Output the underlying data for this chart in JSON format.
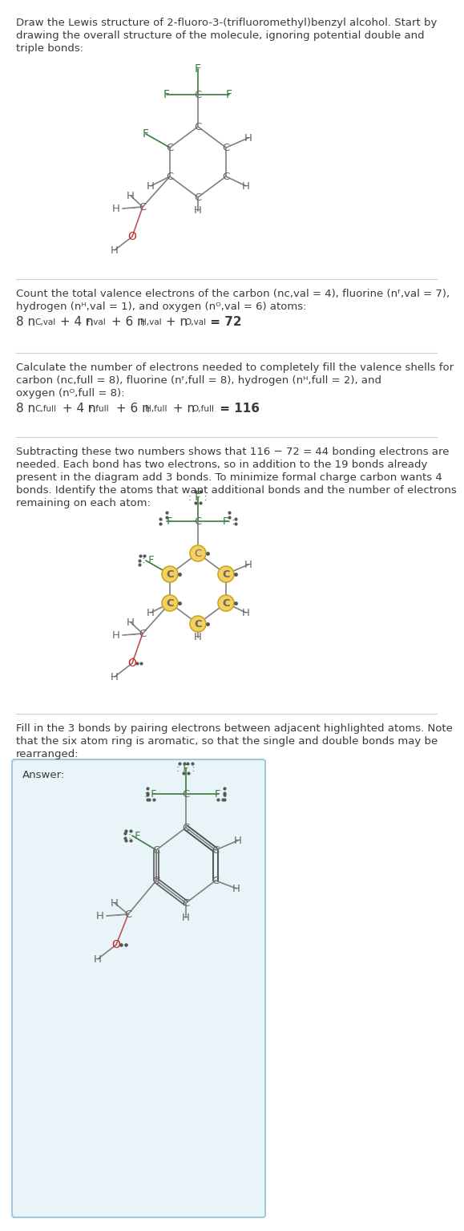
{
  "title_text": "Draw the Lewis structure of 2-fluoro-3-(trifluoromethyl)benzyl alcohol. Start by drawing the overall structure of the molecule, ignoring potential double and triple bonds:",
  "section2_text": "Count the total valence electrons of the carbon (nₙ,val = 4), fluorine (nᴺ,val = 7),\nhydrogen (nᴴ,val = 1), and oxygen (nᴼ,val = 6) atoms:\n8 n_C,val + 4 n_F,val + 6 n_H,val + n_O,val = 72",
  "section3_text": "Calculate the number of electrons needed to completely fill the valence shells for\ncarbon (nₙ,full = 8), fluorine (nᴺ,full = 8), hydrogen (nᴴ,full = 2), and\noxygen (nᴼ,full = 8):\n8 n_C,full + 4 n_F,full + 6 n_H,full + n_O,full = 116",
  "section4_text": "Subtracting these two numbers shows that 116 − 72 = 44 bonding electrons are\nneeded. Each bond has two electrons, so in addition to the 19 bonds already\npresent in the diagram add 3 bonds. To minimize formal charge carbon wants 4\nbonds. Identify the atoms that want additional bonds and the number of electrons\nremaining on each atom:",
  "section5_text": "Fill in the 3 bonds by pairing electrons between adjacent highlighted atoms. Note\nthat the six atom ring is aromatic, so that the single and double bonds may be\nrearranged:",
  "answer_text": "Answer:",
  "bg_color": "#ffffff",
  "text_color": "#404040",
  "C_color": "#808080",
  "F_color": "#3a7a3a",
  "H_color": "#808080",
  "O_color": "#cc2222",
  "highlight_color": "#f5d060",
  "answer_bg": "#e8f4f8",
  "answer_border": "#a0c8d8"
}
